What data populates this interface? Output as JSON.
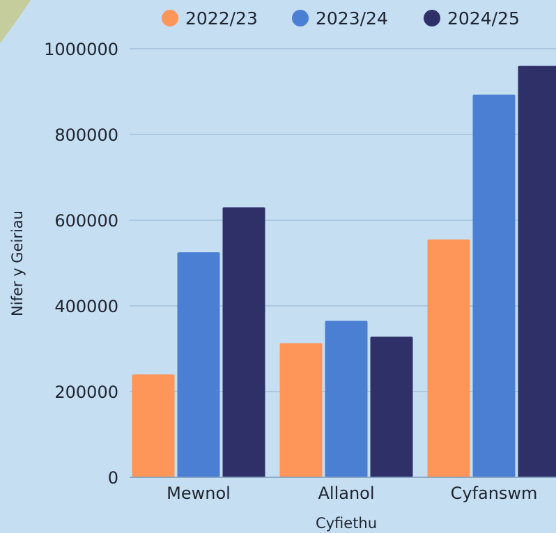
{
  "chart_data": {
    "type": "bar",
    "categories": [
      "Mewnol",
      "Allanol",
      "Cyfanswm"
    ],
    "series": [
      {
        "name": "2022/23",
        "color": "#fe965a",
        "values": [
          240000,
          313000,
          555000
        ]
      },
      {
        "name": "2023/24",
        "color": "#4b7fd3",
        "values": [
          525000,
          365000,
          893000
        ]
      },
      {
        "name": "2024/25",
        "color": "#2f3068",
        "values": [
          630000,
          328000,
          960000
        ]
      }
    ],
    "xlabel": "Cyfiethu",
    "ylabel": "Nifer y Geiriau",
    "ylim": [
      0,
      1000000
    ],
    "yticks": [
      "0",
      "200000",
      "400000",
      "600000",
      "800000",
      "1000000"
    ],
    "grid": true,
    "legend_position": "top",
    "colors": {
      "background": "#c5def2",
      "gridline": "#a4c0db",
      "axis": "#7d9bb8",
      "decoration": "#c6cd9d"
    }
  }
}
